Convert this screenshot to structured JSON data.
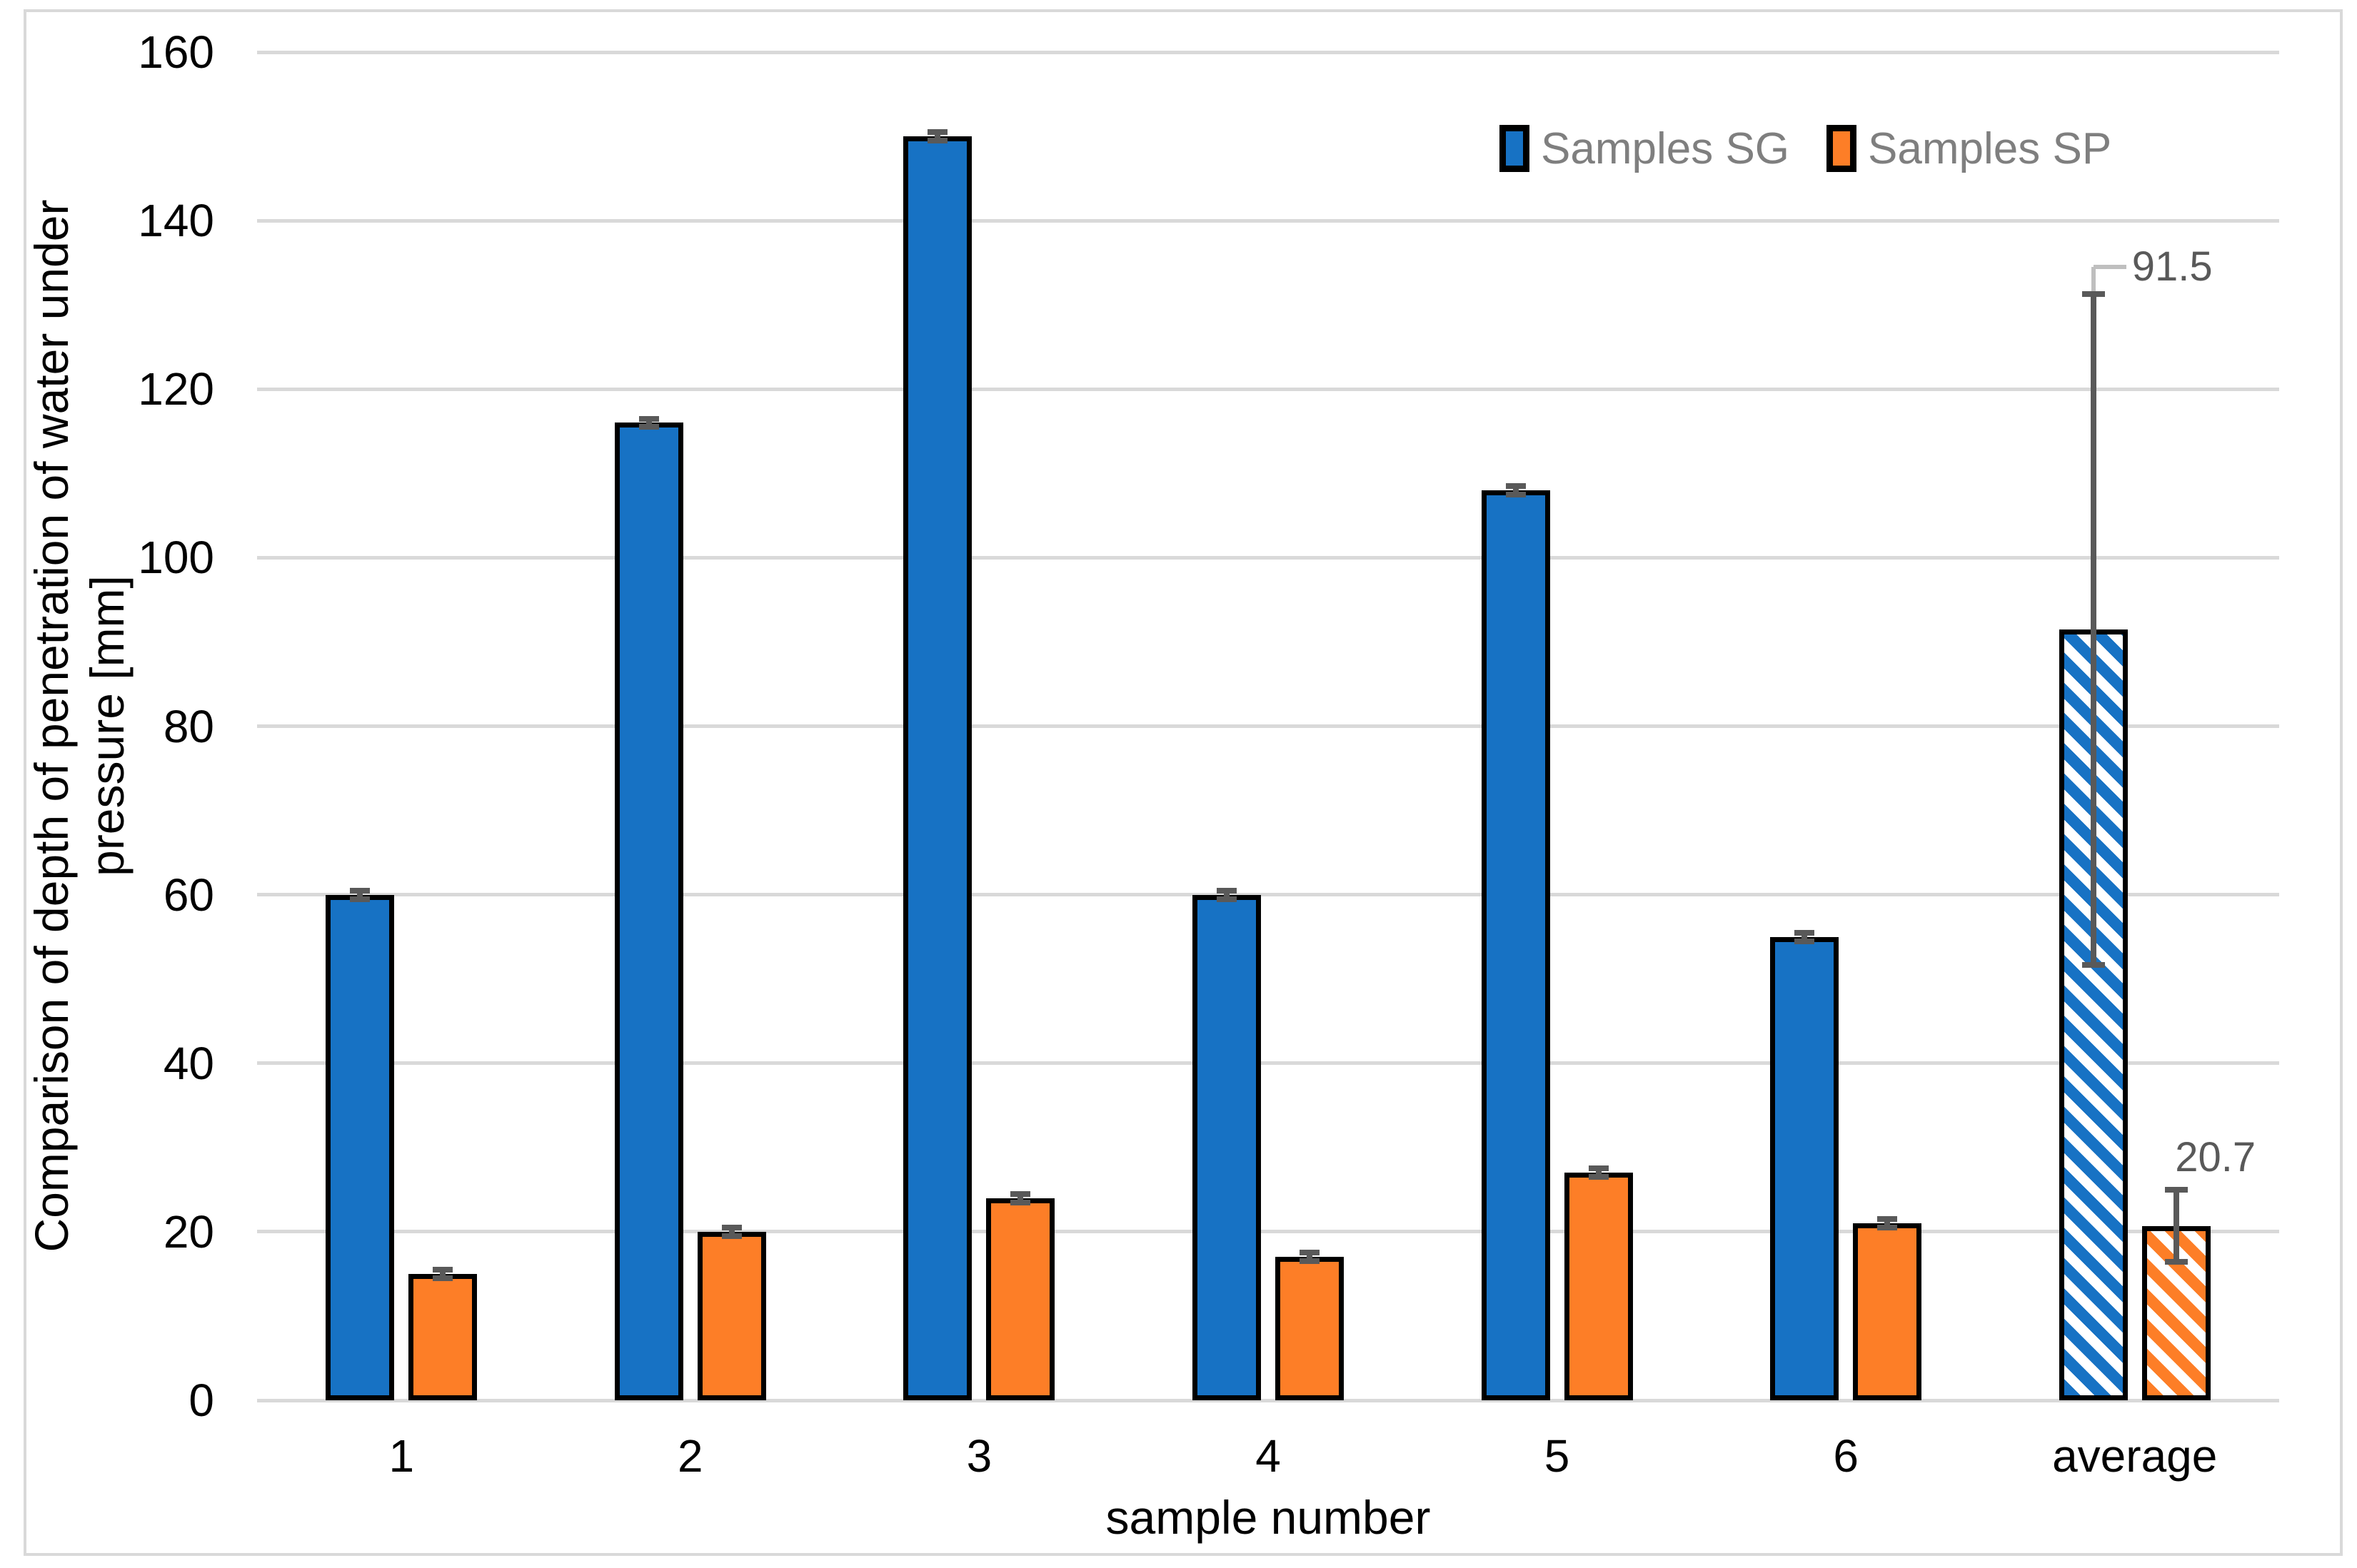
{
  "chart_data": {
    "type": "bar",
    "title": "",
    "categories": [
      "1",
      "2",
      "3",
      "4",
      "5",
      "6",
      "average"
    ],
    "series": [
      {
        "name": "Samples SG",
        "color": "#1772c4",
        "values": [
          60,
          116,
          150,
          60,
          108,
          55,
          91.5
        ],
        "errors": [
          0.5,
          0.5,
          0.5,
          0.5,
          0.5,
          0.5,
          39.8
        ],
        "hatched_categories": [
          "average"
        ]
      },
      {
        "name": "Samples SP",
        "color": "#fd7e27",
        "values": [
          15,
          20,
          24,
          17,
          27,
          21,
          20.7
        ],
        "errors": [
          0.5,
          0.5,
          0.5,
          0.5,
          0.5,
          0.5,
          4.3
        ],
        "hatched_categories": [
          "average"
        ]
      }
    ],
    "data_labels": [
      {
        "series_index": 0,
        "category": "average",
        "text": "91.5"
      },
      {
        "series_index": 1,
        "category": "average",
        "text": "20.7"
      }
    ],
    "xlabel": "sample number",
    "ylabel": "Comparison of depth of penetration of water under pressure [mm]",
    "ylabel_lines": [
      "Comparison of depth of penetration of water under",
      "pressure [mm]"
    ],
    "ylim": [
      0,
      160
    ],
    "yticks": [
      0,
      20,
      40,
      60,
      80,
      100,
      120,
      140,
      160
    ],
    "grid": true,
    "legend_position": "top-right",
    "colors": {
      "background": "#ffffff",
      "figure_border": "#d9d9d9",
      "gridline": "#d9d9d9",
      "axis_text": "#000000",
      "legend_text": "#7f7f7f",
      "data_label_text": "#595959",
      "error_bar": "#595959",
      "leader_line": "#bfbfbf",
      "bar_border": "#000000"
    }
  }
}
